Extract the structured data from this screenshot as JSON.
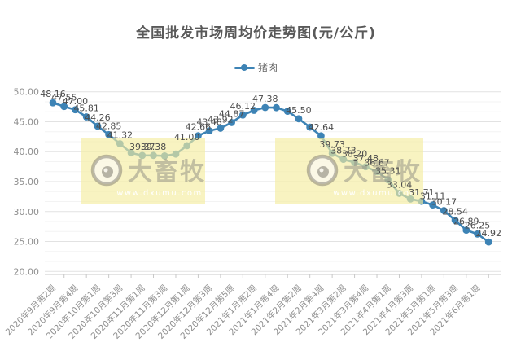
{
  "page": {
    "background": "#ffffff"
  },
  "chart_data": {
    "type": "line",
    "title": "全国批发市场周均价走势图(元/公斤)",
    "legend": [
      {
        "label": "猪肉",
        "color": "#3d83b5"
      }
    ],
    "ylabel": "",
    "xlabel": "",
    "ylim": [
      20,
      50
    ],
    "y_tick_labels": [
      "50.00",
      "45.00",
      "40.00",
      "35.00",
      "30.00",
      "25.00",
      "20.00"
    ],
    "y_ticks": [
      50,
      45,
      40,
      35,
      30,
      25,
      20
    ],
    "grid": "horizontal, major every 5 with 2 faint minor lines between",
    "legend_position": "top-center",
    "x_tick_labels": [
      "2020年9月第2周",
      "2020年9月第4周",
      "2020年10月第1周",
      "2020年10月第3周",
      "2020年11月第1周",
      "2020年11月第3周",
      "2020年12月第1周",
      "2020年12月第3周",
      "2020年12月第5周",
      "2021年1月第2周",
      "2021年1月第4周",
      "2021年2月第2周",
      "2021年2月第4周",
      "2021年3月第2周",
      "2021年3月第4周",
      "2021年4月第1周",
      "2021年4月第3周",
      "2021年5月第1周",
      "2021年5月第3周",
      "2021年6月第1周"
    ],
    "x_tick_note": "ticks label every other data point (points 1,3,5,...,39 of 40)",
    "series": [
      {
        "name": "猪肉",
        "color": "#3d83b5",
        "values": [
          48.16,
          47.55,
          47.0,
          45.81,
          44.26,
          42.85,
          41.32,
          39.8,
          39.37,
          39.38,
          39.3,
          39.6,
          41.0,
          42.66,
          43.48,
          43.92,
          44.87,
          46.12,
          46.9,
          47.38,
          47.35,
          46.75,
          45.5,
          44.1,
          42.64,
          39.73,
          38.73,
          38.2,
          37.48,
          36.67,
          35.31,
          33.04,
          32.1,
          31.71,
          31.11,
          30.17,
          28.54,
          26.89,
          26.25,
          24.92
        ],
        "point_labels": [
          "48.16",
          "47.55",
          "47.00",
          "45.81",
          "44.26",
          "42.85",
          "41.32",
          "",
          "39.37",
          "39.38",
          "",
          "",
          "41.00",
          "42.66",
          "43.48",
          "43.92",
          "44.87",
          "46.12",
          "",
          "47.38",
          "",
          "",
          "45.50",
          "",
          "42.64",
          "39.73",
          "38.73",
          "38.20",
          "37.48",
          "36.67",
          "35.31",
          "33.04",
          "",
          "31.71",
          "31.11",
          "30.17",
          "28.54",
          "26.89",
          "26.25",
          "24.92"
        ]
      }
    ],
    "watermark": {
      "brand": "大畜牧",
      "url": "www.dxumu.com"
    }
  },
  "colors": {
    "line": "#3d83b5",
    "title_text": "#595959",
    "axis_text": "#8f8f8f",
    "point_label_text": "#4d4d4d",
    "grid_major": "#e2e2e2",
    "grid_minor": "#f3f3f3",
    "axis_line": "#c8c8c8",
    "watermark_bg": "rgba(244,237,160,0.65)",
    "watermark_text": "rgba(150,147,135,0.55)",
    "watermark_url_text": "rgba(255,255,255,0.95)"
  }
}
